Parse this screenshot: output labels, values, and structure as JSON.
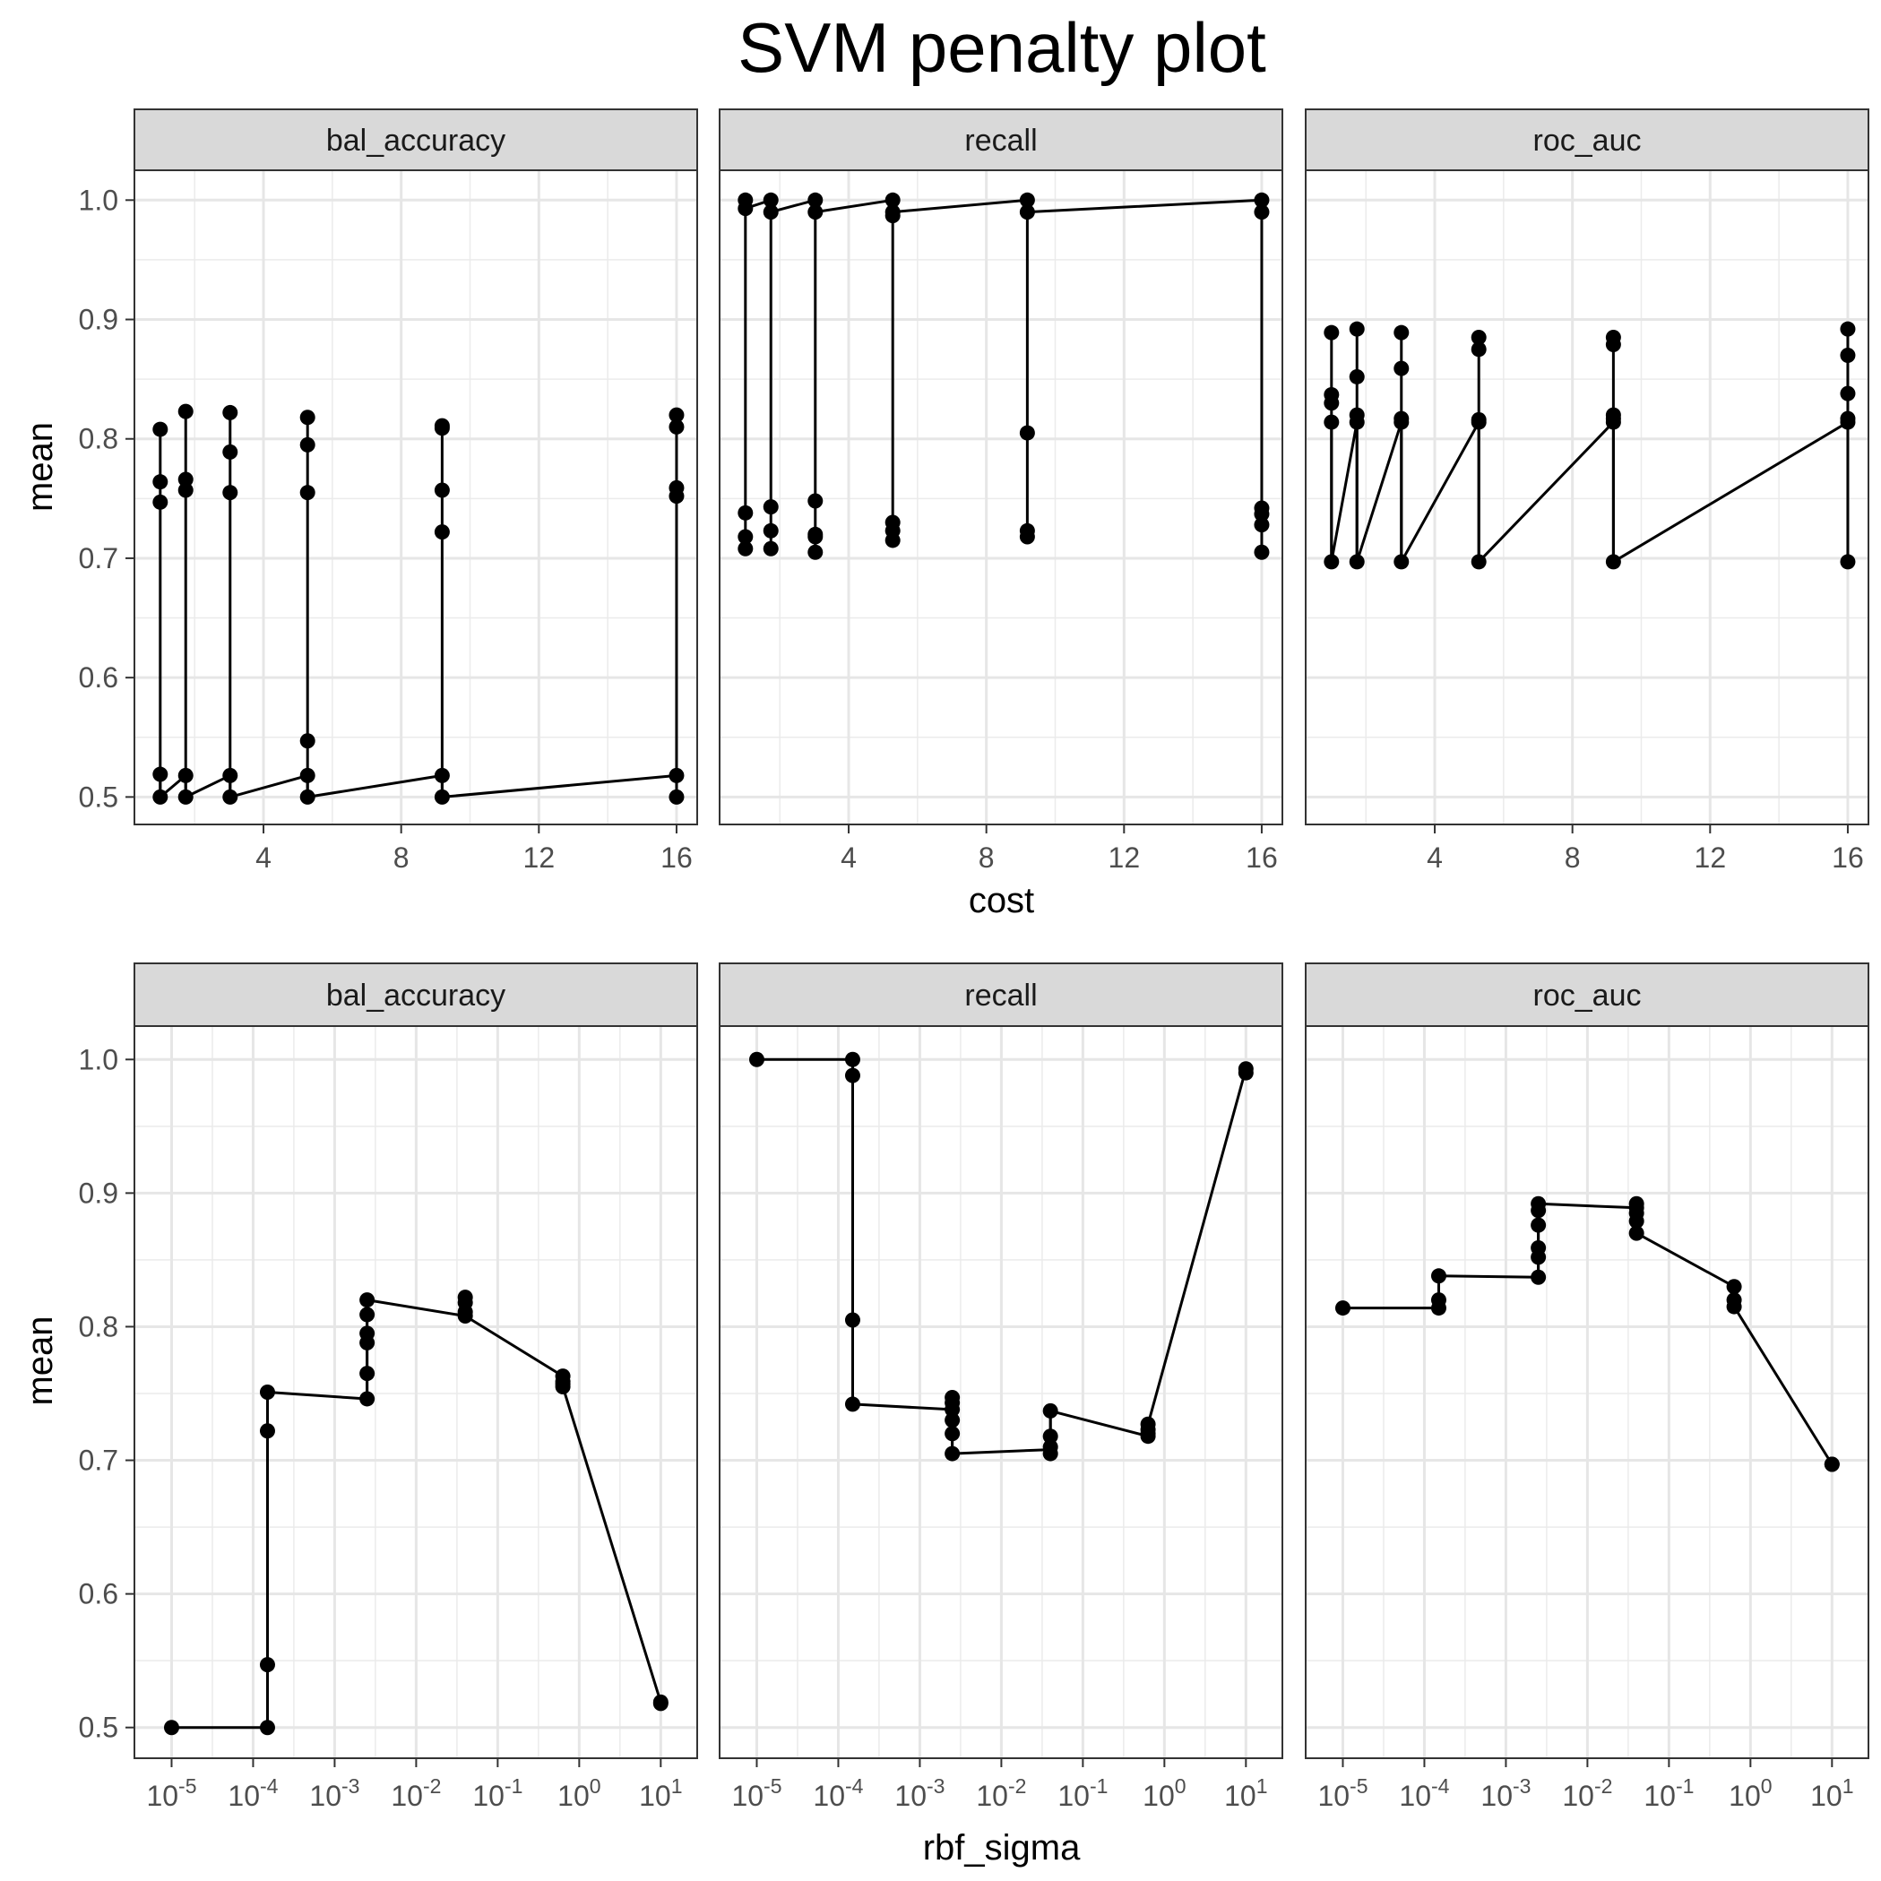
{
  "title": "SVM penalty plot",
  "chart_data": [
    {
      "type": "line",
      "title": "SVM penalty plot",
      "facets": [
        "bal_accuracy",
        "recall",
        "roc_auc"
      ],
      "xlabel": "cost",
      "ylabel": "mean",
      "xscale": "linear",
      "xlim": [
        0.25,
        16.6
      ],
      "ylim": [
        0.477,
        1.025
      ],
      "x_ticks": [
        4,
        8,
        12,
        16
      ],
      "x_tick_labels": [
        "4",
        "8",
        "12",
        "16"
      ],
      "y_ticks": [
        0.5,
        0.6,
        0.7,
        0.8,
        0.9,
        1.0
      ],
      "y_tick_labels": [
        "0.5",
        "0.6",
        "0.7",
        "0.8",
        "0.9",
        "1.0"
      ],
      "grid": true,
      "marker": "point",
      "series": [
        {
          "facet": "bal_accuracy",
          "x": [
            1,
            1,
            1,
            1,
            1,
            1.74,
            1.74,
            1.74,
            1.74,
            1.74,
            3.03,
            3.03,
            3.03,
            3.03,
            3.03,
            5.28,
            5.28,
            5.28,
            5.28,
            5.28,
            5.28,
            9.19,
            9.19,
            9.19,
            9.19,
            9.19,
            9.19,
            16,
            16,
            16,
            16,
            16,
            16
          ],
          "y": [
            0.808,
            0.764,
            0.747,
            0.519,
            0.5,
            0.823,
            0.766,
            0.757,
            0.518,
            0.5,
            0.822,
            0.789,
            0.755,
            0.518,
            0.5,
            0.818,
            0.795,
            0.755,
            0.547,
            0.518,
            0.5,
            0.811,
            0.809,
            0.757,
            0.722,
            0.518,
            0.5,
            0.82,
            0.81,
            0.759,
            0.752,
            0.518,
            0.5
          ]
        },
        {
          "facet": "recall",
          "x": [
            1,
            1,
            1,
            1,
            1,
            1.74,
            1.74,
            1.74,
            1.74,
            1.74,
            3.03,
            3.03,
            3.03,
            3.03,
            3.03,
            3.03,
            5.28,
            5.28,
            5.28,
            5.28,
            5.28,
            5.28,
            9.19,
            9.19,
            9.19,
            9.19,
            9.19,
            16,
            16,
            16,
            16,
            16,
            16
          ],
          "y": [
            1.0,
            0.993,
            0.738,
            0.718,
            0.708,
            1.0,
            0.99,
            0.743,
            0.723,
            0.708,
            1.0,
            0.99,
            0.748,
            0.72,
            0.718,
            0.705,
            1.0,
            0.99,
            0.987,
            0.73,
            0.723,
            0.715,
            1.0,
            0.99,
            0.805,
            0.723,
            0.718,
            1.0,
            0.99,
            0.742,
            0.737,
            0.728,
            0.705
          ]
        },
        {
          "facet": "roc_auc",
          "x": [
            1,
            1,
            1,
            1,
            1,
            1.74,
            1.74,
            1.74,
            1.74,
            1.74,
            3.03,
            3.03,
            3.03,
            3.03,
            3.03,
            5.28,
            5.28,
            5.28,
            5.28,
            5.28,
            9.19,
            9.19,
            9.19,
            9.19,
            9.19,
            9.19,
            16,
            16,
            16,
            16,
            16,
            16
          ],
          "y": [
            0.889,
            0.837,
            0.83,
            0.814,
            0.697,
            0.892,
            0.852,
            0.82,
            0.814,
            0.697,
            0.889,
            0.859,
            0.817,
            0.814,
            0.697,
            0.885,
            0.875,
            0.816,
            0.814,
            0.697,
            0.885,
            0.879,
            0.82,
            0.817,
            0.814,
            0.697,
            0.892,
            0.87,
            0.838,
            0.817,
            0.814,
            0.697
          ]
        }
      ],
      "line_path": {
        "bal_accuracy": {
          "x": [
            1,
            1,
            1.74,
            1.74,
            3.03,
            3.03,
            5.28,
            5.28,
            9.19,
            9.19,
            16,
            16
          ],
          "y": [
            0.519,
            0.5,
            0.518,
            0.5,
            0.518,
            0.5,
            0.518,
            0.5,
            0.518,
            0.5,
            0.518,
            0.5
          ]
        },
        "recall": {
          "x": [
            1,
            1,
            1.74,
            1.74,
            3.03,
            3.03,
            5.28,
            5.28,
            9.19,
            9.19,
            16,
            16
          ],
          "y": [
            1.0,
            0.993,
            1.0,
            0.99,
            1.0,
            0.99,
            1.0,
            0.99,
            1.0,
            0.99,
            1.0,
            0.99
          ]
        },
        "roc_auc": {
          "x": [
            1,
            1,
            1.74,
            1.74,
            3.03,
            3.03,
            5.28,
            5.28,
            9.19,
            9.19,
            16,
            16
          ],
          "y": [
            0.814,
            0.697,
            0.814,
            0.697,
            0.814,
            0.697,
            0.814,
            0.697,
            0.814,
            0.697,
            0.814,
            0.697
          ]
        }
      }
    },
    {
      "type": "line",
      "facets": [
        "bal_accuracy",
        "recall",
        "roc_auc"
      ],
      "xlabel": "rbf_sigma",
      "ylabel": "mean",
      "xscale": "log10",
      "xlim": [
        3.5e-06,
        28
      ],
      "ylim": [
        0.477,
        1.025
      ],
      "x_ticks": [
        1e-05,
        0.0001,
        0.001,
        0.01,
        0.1,
        1,
        10
      ],
      "x_tick_labels": [
        [
          "10",
          "-5"
        ],
        [
          "10",
          "-4"
        ],
        [
          "10",
          "-3"
        ],
        [
          "10",
          "-2"
        ],
        [
          "10",
          "-1"
        ],
        [
          "10",
          "0"
        ],
        [
          "10",
          "1"
        ]
      ],
      "y_ticks": [
        0.5,
        0.6,
        0.7,
        0.8,
        0.9,
        1.0
      ],
      "y_tick_labels": [
        "0.5",
        "0.6",
        "0.7",
        "0.8",
        "0.9",
        "1.0"
      ],
      "grid": true,
      "marker": "point",
      "series": [
        {
          "facet": "bal_accuracy",
          "x": [
            1e-05,
            0.00015,
            0.00015,
            0.00015,
            0.00015,
            0.0025,
            0.0025,
            0.0025,
            0.0025,
            0.0025,
            0.0025,
            0.04,
            0.04,
            0.04,
            0.04,
            0.63,
            0.63,
            0.63,
            0.63,
            10,
            10
          ],
          "y": [
            0.5,
            0.751,
            0.722,
            0.547,
            0.5,
            0.82,
            0.809,
            0.795,
            0.788,
            0.765,
            0.746,
            0.822,
            0.818,
            0.811,
            0.808,
            0.763,
            0.759,
            0.757,
            0.755,
            0.519,
            0.518
          ]
        },
        {
          "facet": "recall",
          "x": [
            1e-05,
            0.00015,
            0.00015,
            0.00015,
            0.00015,
            0.0025,
            0.0025,
            0.0025,
            0.0025,
            0.0025,
            0.0025,
            0.04,
            0.04,
            0.04,
            0.04,
            0.63,
            0.63,
            0.63,
            0.63,
            10,
            10
          ],
          "y": [
            1.0,
            1.0,
            0.988,
            0.805,
            0.742,
            0.747,
            0.743,
            0.738,
            0.73,
            0.72,
            0.705,
            0.737,
            0.718,
            0.71,
            0.705,
            0.727,
            0.723,
            0.72,
            0.718,
            0.993,
            0.99
          ]
        },
        {
          "facet": "roc_auc",
          "x": [
            1e-05,
            0.00015,
            0.00015,
            0.00015,
            0.0025,
            0.0025,
            0.0025,
            0.0025,
            0.0025,
            0.0025,
            0.04,
            0.04,
            0.04,
            0.04,
            0.04,
            0.63,
            0.63,
            0.63,
            10,
            10
          ],
          "y": [
            0.814,
            0.838,
            0.82,
            0.814,
            0.892,
            0.887,
            0.876,
            0.859,
            0.852,
            0.837,
            0.892,
            0.889,
            0.885,
            0.879,
            0.87,
            0.83,
            0.82,
            0.815,
            0.697,
            0.697
          ]
        }
      ],
      "line_path": {
        "bal_accuracy": {
          "x": [
            1e-05,
            0.00015,
            0.00015,
            0.0025,
            0.0025,
            0.04,
            0.04,
            0.63,
            0.63,
            10
          ],
          "y": [
            0.5,
            0.5,
            0.751,
            0.746,
            0.82,
            0.808,
            0.808,
            0.763,
            0.755,
            0.519
          ]
        },
        "recall": {
          "x": [
            1e-05,
            0.00015,
            0.00015,
            0.0025,
            0.0025,
            0.04,
            0.04,
            0.63,
            0.63,
            10
          ],
          "y": [
            1.0,
            1.0,
            0.742,
            0.738,
            0.705,
            0.708,
            0.737,
            0.718,
            0.727,
            0.993
          ]
        },
        "roc_auc": {
          "x": [
            1e-05,
            0.00015,
            0.00015,
            0.0025,
            0.0025,
            0.04,
            0.04,
            0.63,
            0.63,
            10
          ],
          "y": [
            0.814,
            0.814,
            0.838,
            0.837,
            0.892,
            0.889,
            0.87,
            0.83,
            0.815,
            0.697
          ]
        }
      }
    }
  ]
}
